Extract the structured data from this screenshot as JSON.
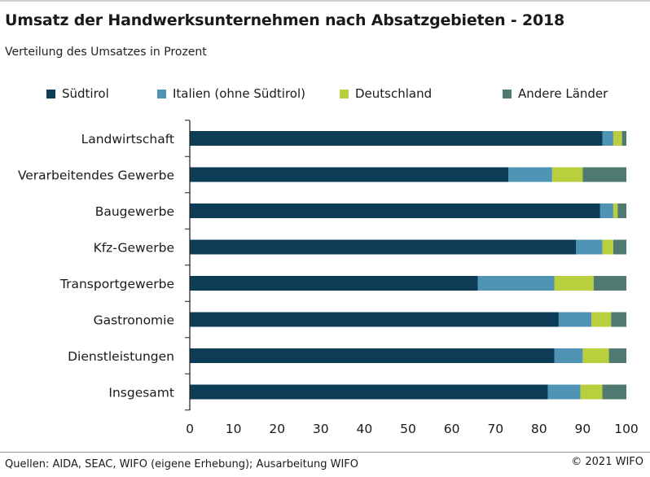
{
  "title": "Umsatz der Handwerksunternehmen nach Absatzgebieten - 2018",
  "subtitle": "Verteilung des Umsatzes in Prozent",
  "source": "Quellen: AIDA, SEAC, WIFO (eigene Erhebung); Ausarbeitung WIFO",
  "copyright": "© 2021 WIFO",
  "chart_data": {
    "type": "bar",
    "orientation": "horizontal",
    "stacked": true,
    "categories": [
      "Landwirtschaft",
      "Verarbeitendes Gewerbe",
      "Baugewerbe",
      "Kfz-Gewerbe",
      "Transportgewerbe",
      "Gastronomie",
      "Dienstleistungen",
      "Insgesamt"
    ],
    "series": [
      {
        "name": "Südtirol",
        "color": "#0d3d56",
        "values": [
          94.5,
          73,
          94,
          88.5,
          66,
          84.5,
          83.5,
          82
        ]
      },
      {
        "name": "Italien (ohne Südtirol)",
        "color": "#4f93b5",
        "values": [
          2.5,
          10,
          3,
          6,
          17.5,
          7.5,
          6.5,
          7.5
        ]
      },
      {
        "name": "Deutschland",
        "color": "#b9cf3d",
        "values": [
          2,
          7,
          1,
          2.5,
          9,
          4.5,
          6,
          5
        ]
      },
      {
        "name": "Andere Länder",
        "color": "#4f7a71",
        "values": [
          1,
          10,
          2,
          3,
          7.5,
          3.5,
          4,
          5.5
        ]
      }
    ],
    "xlim": [
      0,
      100
    ],
    "xticks": [
      0,
      10,
      20,
      30,
      40,
      50,
      60,
      70,
      80,
      90,
      100
    ],
    "xlabel": "",
    "ylabel": "",
    "grid": false,
    "legend_position": "top"
  }
}
